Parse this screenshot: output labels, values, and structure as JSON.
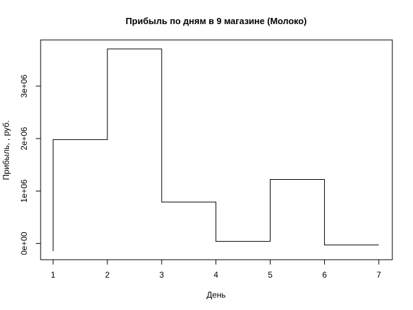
{
  "chart_data": {
    "type": "step",
    "title": "Прибыль по дням в 9 магазине (Молоко)",
    "x_label": "День",
    "y_label": "Прибыль, , руб.",
    "x": [
      1,
      2,
      3,
      4,
      5,
      6,
      7
    ],
    "values": [
      -145000,
      1980000,
      3710000,
      790000,
      40000,
      1220000,
      -30000
    ],
    "color": "#000000",
    "xlim": [
      0.77,
      7.25
    ],
    "ylim": [
      -310000,
      3880000
    ],
    "xticks": [
      1,
      2,
      3,
      4,
      5,
      6,
      7
    ],
    "yticks": [
      {
        "value": 0,
        "label": "0e+00"
      },
      {
        "value": 1000000,
        "label": "1e+06"
      },
      {
        "value": 2000000,
        "label": "2e+06"
      },
      {
        "value": 3000000,
        "label": "3e+06"
      }
    ]
  }
}
